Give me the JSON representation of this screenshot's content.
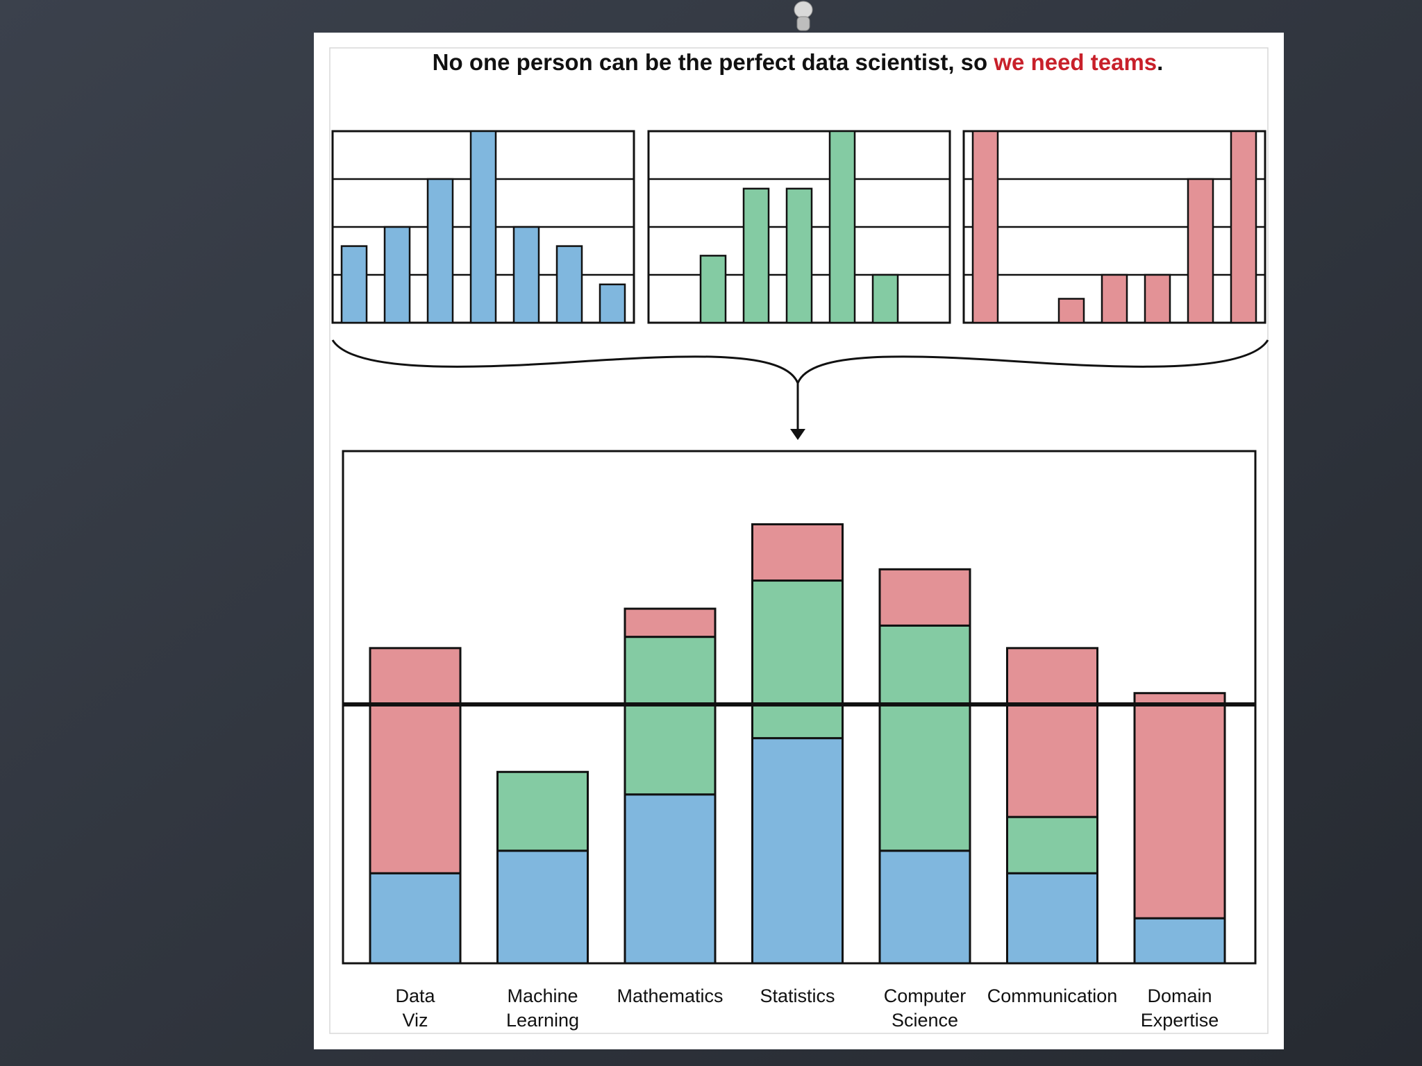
{
  "chart_data": {
    "type": "stacked_bar",
    "title_parts": [
      {
        "text": "No one person can be the perfect data scientist, so ",
        "color": "#111111"
      },
      {
        "text": "we need teams",
        "color": "#c8202a"
      },
      {
        "text": ".",
        "color": "#111111"
      }
    ],
    "categories": [
      "Data Viz",
      "Machine Learning",
      "Mathematics",
      "Statistics",
      "Computer Science",
      "Communication",
      "Domain Expertise"
    ],
    "series": [
      {
        "color": "#80b7de",
        "values": [
          1.6,
          2,
          3,
          4,
          2,
          1.6,
          0.8
        ]
      },
      {
        "color": "#84cba3",
        "values": [
          0,
          1.4,
          2.8,
          2.8,
          4,
          1,
          0
        ]
      },
      {
        "color": "#e39296",
        "values": [
          4,
          0,
          0.5,
          1,
          1,
          3,
          4
        ]
      }
    ],
    "ylim": [
      0,
      9.1
    ],
    "threshold": 4.6,
    "panel_ylim": [
      0,
      4
    ],
    "panel_yticks": [
      0,
      1,
      2,
      3,
      4
    ],
    "grid": true
  }
}
